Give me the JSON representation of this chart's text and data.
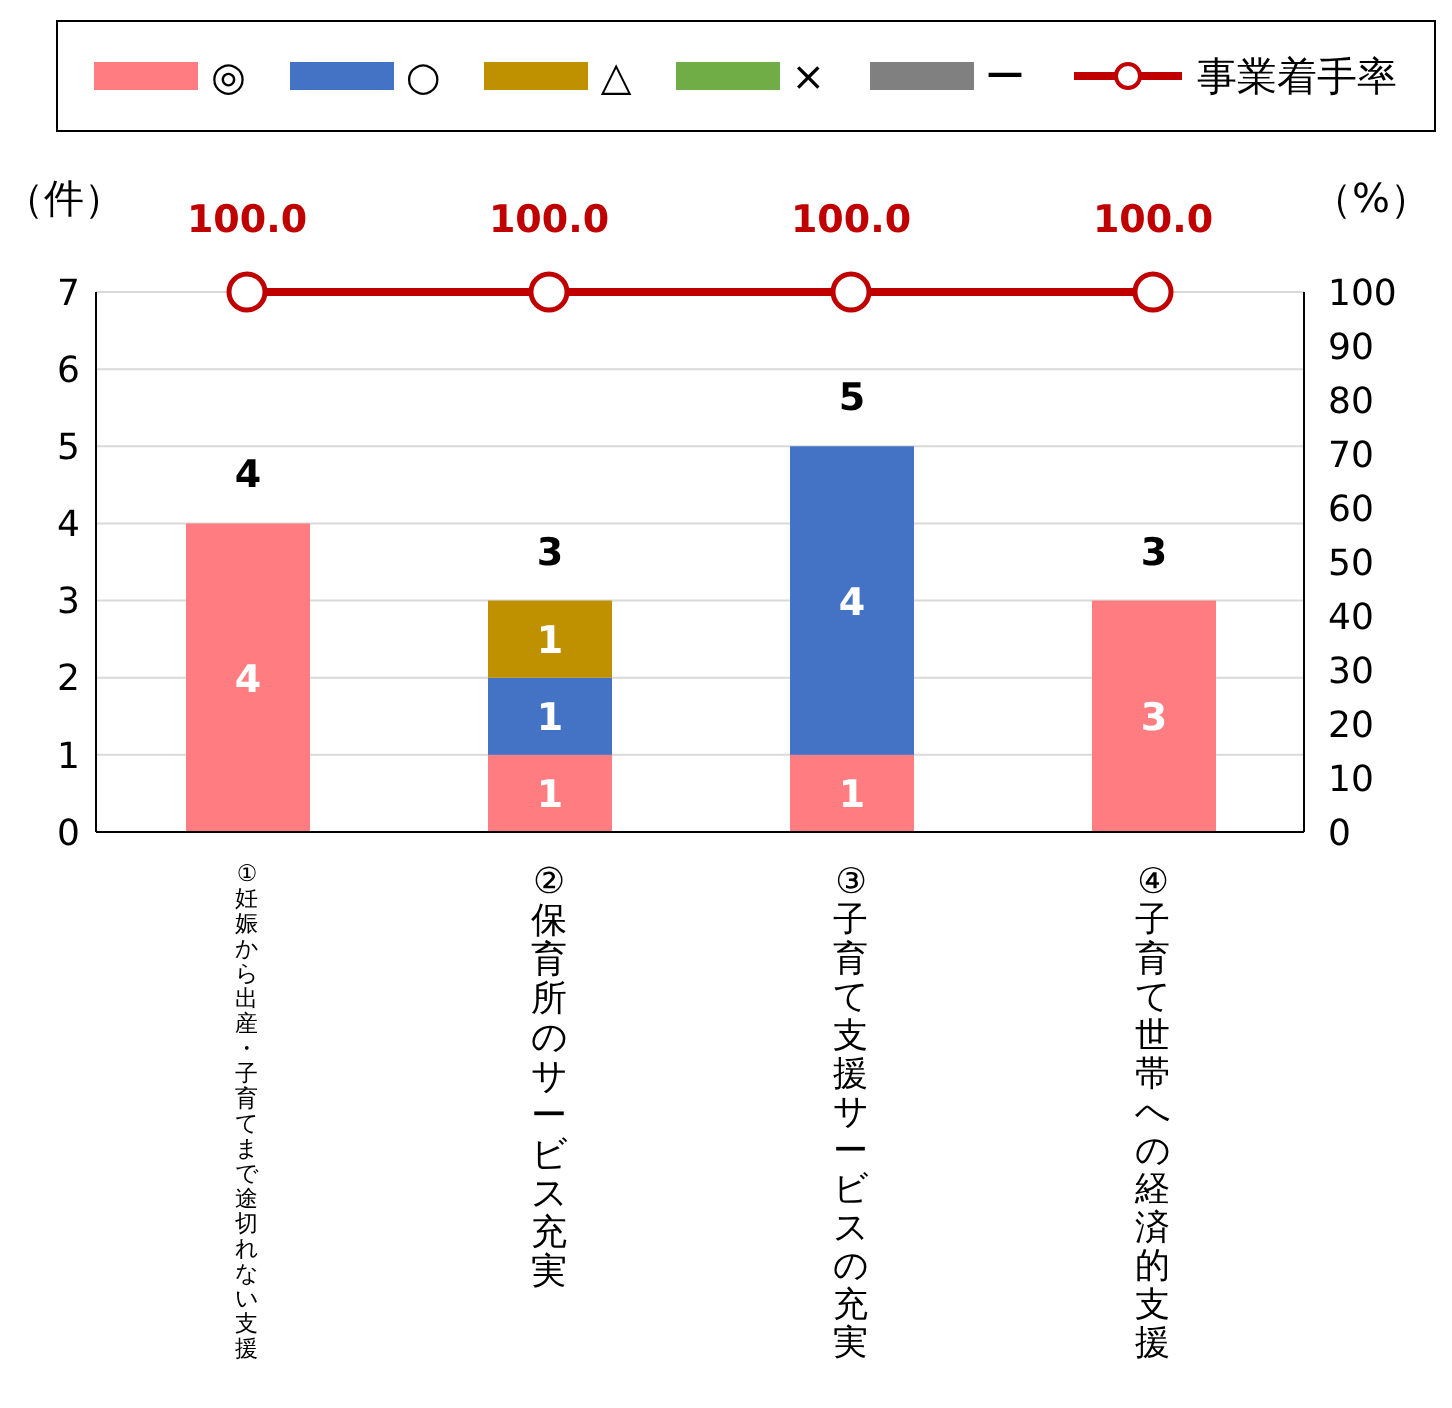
{
  "chart_data": {
    "type": "bar",
    "stacked": true,
    "ylabel": "（件）",
    "y2label": "（%）",
    "categories": [
      "①妊娠から出産・子育てまで途切れない支援",
      "②保育所のサービス充実",
      "③子育て支援サービスの充実",
      "④子育て世帯への経済的支援"
    ],
    "series": [
      {
        "name": "◎",
        "color": "#ff7c80",
        "values": [
          4,
          1,
          1,
          3
        ]
      },
      {
        "name": "○",
        "color": "#4472c4",
        "values": [
          null,
          1,
          4,
          null
        ]
      },
      {
        "name": "△",
        "color": "#bf9000",
        "values": [
          null,
          1,
          null,
          null
        ]
      },
      {
        "name": "×",
        "color": "#70ad47",
        "values": [
          null,
          null,
          null,
          null
        ]
      },
      {
        "name": "ー",
        "color": "#808080",
        "values": [
          null,
          null,
          null,
          null
        ]
      },
      {
        "name": "事業着手率",
        "type": "line",
        "axis": "y2",
        "color": "#c00000",
        "marker": "circle",
        "values": [
          100,
          100,
          100,
          100
        ],
        "value_labels": [
          "100.0",
          "100.0",
          "100.0",
          "100.0"
        ]
      }
    ],
    "totals": [
      "4",
      "3",
      "5",
      "3"
    ],
    "data_labels": true,
    "ylim": [
      0,
      7
    ],
    "yticks": [
      0,
      1,
      2,
      3,
      4,
      5,
      6,
      7
    ],
    "y2lim": [
      0,
      100
    ],
    "y2ticks": [
      0,
      10,
      20,
      30,
      40,
      50,
      60,
      70,
      80,
      90,
      100
    ],
    "grid": "y",
    "legend": "top"
  }
}
